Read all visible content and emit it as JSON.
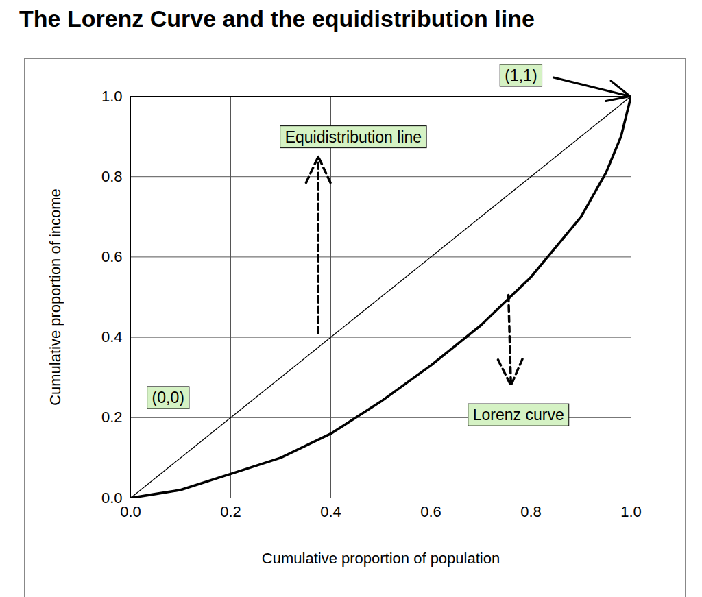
{
  "chart_data": {
    "type": "line",
    "title": "The Lorenz Curve and the equidistribution line",
    "x_label": "Cumulative proportion of population",
    "y_label": "Cumulative proportion of income",
    "x": [
      0,
      0.05,
      0.1,
      0.2,
      0.3,
      0.4,
      0.5,
      0.6,
      0.7,
      0.8,
      0.9,
      0.95,
      0.98,
      1
    ],
    "series": [
      {
        "name": "Equidistribution line",
        "color": "#000000",
        "values": [
          0,
          0.05,
          0.1,
          0.2,
          0.3,
          0.4,
          0.5,
          0.6,
          0.7,
          0.8,
          0.9,
          0.95,
          0.98,
          1
        ]
      },
      {
        "name": "Lorenz curve",
        "color": "#000000",
        "values": [
          0,
          0.01,
          0.02,
          0.06,
          0.1,
          0.16,
          0.24,
          0.33,
          0.43,
          0.55,
          0.7,
          0.81,
          0.9,
          1
        ]
      }
    ],
    "xlim": [
      0,
      1
    ],
    "ylim": [
      0,
      1
    ],
    "xticks": [
      {
        "value": 0,
        "label": "0.0"
      },
      0.2,
      0.4,
      0.6,
      0.8,
      {
        "value": 1,
        "label": "1.0"
      }
    ],
    "yticks": [
      {
        "value": 0,
        "label": "0.0"
      },
      0.2,
      0.4,
      0.6,
      0.8,
      {
        "value": 1,
        "label": "1.0"
      }
    ],
    "grid": true,
    "annotations": [
      "(1,1)",
      "(0,0)"
    ]
  }
}
